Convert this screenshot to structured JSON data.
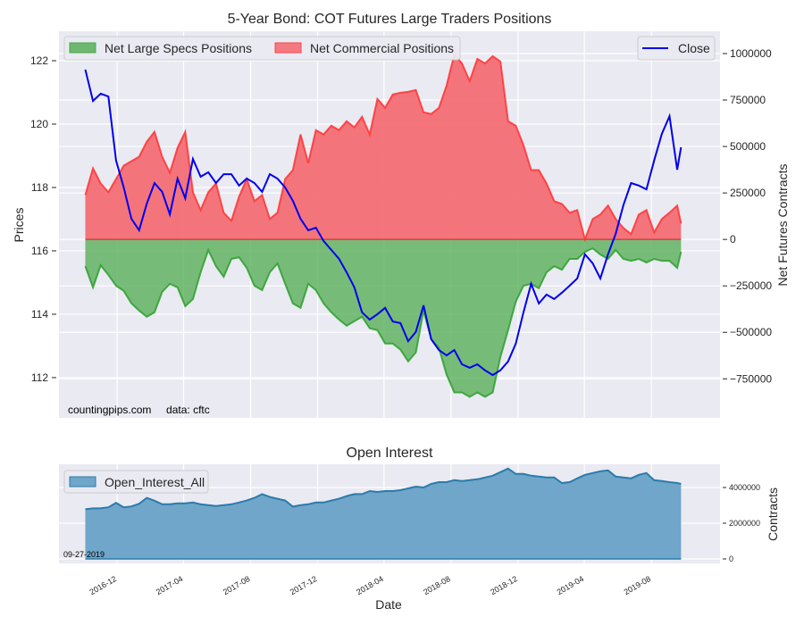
{
  "chart_data": [
    {
      "type": "area",
      "title": "5-Year Bond: COT Futures Large Traders Positions",
      "ylabel_left": "Prices",
      "ylabel_right": "Net Futures Contracts",
      "ylim_left": [
        110.73,
        122.93
      ],
      "ylim_right": [
        -960000,
        1120000
      ],
      "yticks_left": [
        112,
        114,
        116,
        118,
        120,
        122
      ],
      "yticks_left_labels": [
        "112",
        "114",
        "116",
        "118",
        "120",
        "122"
      ],
      "yticks_right": [
        -750000,
        -500000,
        -250000,
        0,
        250000,
        500000,
        750000,
        1000000
      ],
      "yticks_right_labels": [
        "−750000",
        "−500000",
        "−250000",
        "0",
        "250000",
        "500000",
        "750000",
        "1000000"
      ],
      "grid": true,
      "legend_left": {
        "placement": "top-left",
        "entries": [
          "Net Large Specs Positions",
          "Net Commercial Positions"
        ]
      },
      "legend_right": {
        "placement": "top-right",
        "entries": [
          "Close"
        ]
      },
      "annotation": "countingpips.com     data: cftc",
      "colors": {
        "specs": "#2ca02c",
        "specs_fill": "#5aaf5a",
        "commercial": "#ff3333",
        "commercial_fill": "#f46e74",
        "close": "#0000ee",
        "plot_bg": "#eaeaf2",
        "grid": "#ffffff"
      },
      "x": [
        "2016-10-04",
        "2016-10-18",
        "2016-11-01",
        "2016-11-15",
        "2016-11-29",
        "2016-12-13",
        "2016-12-27",
        "2017-01-10",
        "2017-01-24",
        "2017-02-07",
        "2017-02-21",
        "2017-03-07",
        "2017-03-21",
        "2017-04-04",
        "2017-04-18",
        "2017-05-02",
        "2017-05-16",
        "2017-05-30",
        "2017-06-13",
        "2017-06-27",
        "2017-07-11",
        "2017-07-25",
        "2017-08-08",
        "2017-08-22",
        "2017-09-05",
        "2017-09-19",
        "2017-10-03",
        "2017-10-17",
        "2017-10-31",
        "2017-11-14",
        "2017-11-28",
        "2017-12-12",
        "2017-12-26",
        "2018-01-09",
        "2018-01-23",
        "2018-02-06",
        "2018-02-20",
        "2018-03-06",
        "2018-03-20",
        "2018-04-03",
        "2018-04-17",
        "2018-05-01",
        "2018-05-15",
        "2018-05-29",
        "2018-06-12",
        "2018-06-26",
        "2018-07-10",
        "2018-07-24",
        "2018-08-07",
        "2018-08-21",
        "2018-09-04",
        "2018-09-18",
        "2018-10-02",
        "2018-10-16",
        "2018-10-30",
        "2018-11-13",
        "2018-11-27",
        "2018-12-11",
        "2018-12-25",
        "2019-01-08",
        "2019-01-22",
        "2019-02-05",
        "2019-02-19",
        "2019-03-05",
        "2019-03-19",
        "2019-04-02",
        "2019-04-16",
        "2019-04-30",
        "2019-05-14",
        "2019-05-28",
        "2019-06-11",
        "2019-06-25",
        "2019-07-09",
        "2019-07-23",
        "2019-08-06",
        "2019-08-20",
        "2019-09-03",
        "2019-09-17",
        "2019-09-24"
      ],
      "xticks": [
        "2016-12",
        "2017-04",
        "2017-08",
        "2017-12",
        "2018-04",
        "2018-08",
        "2018-12",
        "2019-04",
        "2019-08"
      ],
      "series": [
        {
          "name": "Net Commercial Positions",
          "values": [
            239000,
            383000,
            301000,
            254000,
            325000,
            397000,
            421000,
            445000,
            526000,
            579000,
            445000,
            359000,
            493000,
            579000,
            254000,
            158000,
            254000,
            301000,
            144000,
            100000,
            230000,
            325000,
            206000,
            239000,
            110000,
            144000,
            325000,
            373000,
            565000,
            411000,
            588000,
            565000,
            612000,
            588000,
            636000,
            603000,
            660000,
            565000,
            756000,
            708000,
            780000,
            789000,
            794000,
            804000,
            684000,
            675000,
            708000,
            828000,
            995000,
            947000,
            852000,
            971000,
            947000,
            986000,
            957000,
            636000,
            612000,
            507000,
            373000,
            373000,
            301000,
            206000,
            191000,
            144000,
            158000,
            0,
            110000,
            134000,
            182000,
            110000,
            62000,
            29000,
            134000,
            158000,
            38000,
            110000,
            144000,
            182000,
            86000
          ]
        },
        {
          "name": "Net Large Specs Positions",
          "values": [
            -144000,
            -258000,
            -139000,
            -191000,
            -249000,
            -277000,
            -344000,
            -383000,
            -416000,
            -392000,
            -282000,
            -239000,
            -258000,
            -359000,
            -321000,
            -177000,
            -57000,
            -144000,
            -201000,
            -105000,
            -96000,
            -153000,
            -249000,
            -273000,
            -177000,
            -129000,
            -239000,
            -344000,
            -368000,
            -239000,
            -273000,
            -344000,
            -392000,
            -431000,
            -464000,
            -440000,
            -416000,
            -478000,
            -488000,
            -560000,
            -560000,
            -593000,
            -656000,
            -608000,
            -383000,
            -536000,
            -584000,
            -727000,
            -823000,
            -823000,
            -847000,
            -823000,
            -847000,
            -823000,
            -632000,
            -488000,
            -335000,
            -249000,
            -239000,
            -263000,
            -177000,
            -144000,
            -163000,
            -105000,
            -105000,
            -67000,
            -48000,
            -81000,
            -105000,
            -57000,
            -105000,
            -115000,
            -105000,
            -124000,
            -105000,
            -115000,
            -115000,
            -153000,
            -67000
          ]
        },
        {
          "name": "Close",
          "axis": "left",
          "values": [
            121.72,
            120.73,
            120.96,
            120.87,
            118.85,
            118.0,
            117.01,
            116.65,
            117.49,
            118.14,
            117.86,
            117.15,
            118.28,
            117.66,
            118.9,
            118.34,
            118.48,
            118.14,
            118.42,
            118.42,
            118.06,
            118.28,
            118.14,
            117.86,
            118.42,
            118.28,
            118.0,
            117.58,
            117.01,
            116.65,
            116.73,
            116.31,
            116.03,
            115.75,
            115.32,
            114.85,
            114.06,
            113.83,
            114.0,
            114.2,
            113.77,
            113.72,
            113.15,
            113.44,
            114.28,
            113.21,
            112.87,
            112.7,
            112.87,
            112.42,
            112.31,
            112.42,
            112.23,
            112.08,
            112.23,
            112.51,
            113.07,
            114.06,
            114.96,
            114.34,
            114.62,
            114.48,
            114.68,
            114.9,
            115.13,
            115.89,
            115.61,
            115.13,
            115.89,
            116.54,
            117.44,
            118.14,
            118.06,
            117.94,
            118.85,
            119.69,
            120.25,
            118.56,
            119.27
          ]
        }
      ]
    },
    {
      "type": "area",
      "title": "Open Interest",
      "xlabel": "Date",
      "ylabel": "Contracts",
      "ylim": [
        -250000,
        5300000
      ],
      "yticks": [
        0,
        2000000,
        4000000
      ],
      "ytick_labels": [
        "0",
        "2000000",
        "4000000"
      ],
      "grid": true,
      "legend": {
        "placement": "top-left",
        "entries": [
          "Open_Interest_All"
        ]
      },
      "annotation": "09-27-2019",
      "colors": {
        "line": "#2b7bab",
        "fill": "#6fa6c9",
        "plot_bg": "#eaeaf2",
        "grid": "#ffffff"
      },
      "x_ref": "same as first chart",
      "series": [
        {
          "name": "Open_Interest_All",
          "values": [
            2780000,
            2830000,
            2840000,
            2890000,
            3140000,
            2890000,
            2940000,
            3090000,
            3420000,
            3260000,
            3060000,
            3060000,
            3110000,
            3110000,
            3160000,
            3060000,
            3010000,
            2960000,
            3010000,
            3060000,
            3160000,
            3270000,
            3420000,
            3630000,
            3470000,
            3370000,
            3270000,
            2930000,
            3010000,
            3060000,
            3160000,
            3160000,
            3270000,
            3370000,
            3520000,
            3630000,
            3630000,
            3800000,
            3750000,
            3800000,
            3800000,
            3850000,
            3950000,
            4050000,
            4000000,
            4200000,
            4300000,
            4300000,
            4410000,
            4360000,
            4410000,
            4460000,
            4560000,
            4660000,
            4860000,
            5060000,
            4760000,
            4760000,
            4660000,
            4610000,
            4560000,
            4560000,
            4250000,
            4300000,
            4510000,
            4710000,
            4810000,
            4910000,
            4960000,
            4610000,
            4560000,
            4510000,
            4710000,
            4810000,
            4410000,
            4360000,
            4300000,
            4250000,
            4200000
          ]
        }
      ]
    }
  ]
}
